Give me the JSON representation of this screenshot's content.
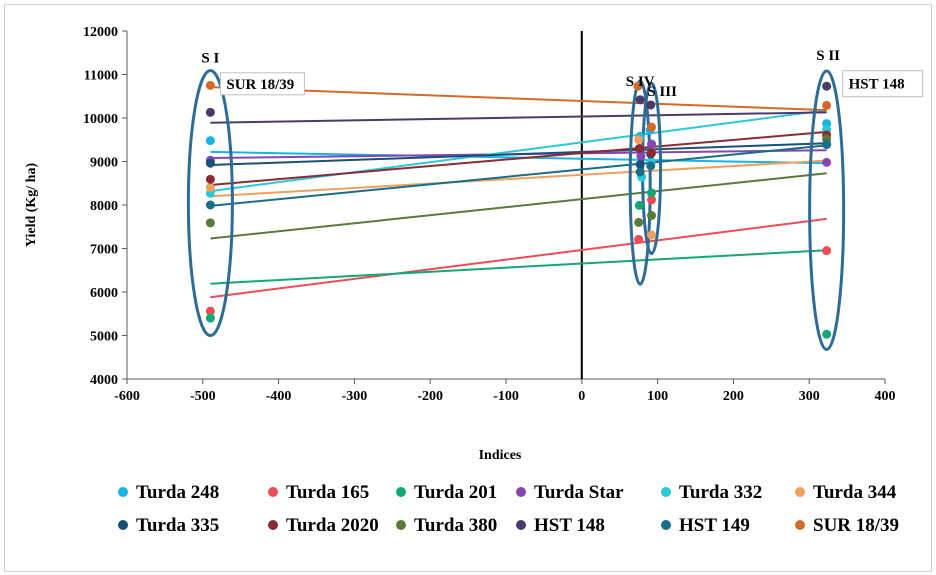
{
  "chart_data": {
    "type": "scatter",
    "xlabel": "Indices",
    "ylabel": "Yield (Kg/ ha)",
    "xlim": [
      -600,
      400
    ],
    "ylim": [
      4000,
      12000
    ],
    "x_ticks": [
      "-600",
      "-500",
      "-400",
      "-300",
      "-200",
      "-100",
      "0",
      "100",
      "200",
      "300",
      "400"
    ],
    "y_ticks": [
      "4000",
      "5000",
      "6000",
      "7000",
      "8000",
      "9000",
      "10000",
      "11000",
      "12000"
    ],
    "grid": false,
    "legend_position": "bottom",
    "group_labels": [
      {
        "text": "S I",
        "x": -490,
        "y": 11280
      },
      {
        "text": "S IV",
        "x": 77,
        "y": 10730
      },
      {
        "text": "S III",
        "x": 106,
        "y": 10510
      },
      {
        "text": "S II",
        "x": 325,
        "y": 11330
      }
    ],
    "callouts": [
      {
        "text": "SUR 18/39",
        "x": -490,
        "y": 10740
      },
      {
        "text": "HST 148",
        "x": 323,
        "y": 10720
      }
    ],
    "series": [
      {
        "name": "Turda 248",
        "color": "#18B4E6",
        "x": [
          -490,
          77,
          90,
          323
        ],
        "y": [
          9480,
          9580,
          9720,
          9870
        ],
        "trend": [
          9220,
          8960
        ]
      },
      {
        "name": "Turda 165",
        "color": "#EE4B55",
        "x": [
          -490,
          75,
          92,
          323
        ],
        "y": [
          5560,
          7210,
          8120,
          6950
        ],
        "trend": [
          5880,
          7680
        ]
      },
      {
        "name": "Turda 201",
        "color": "#12A873",
        "x": [
          -490,
          76,
          92,
          323
        ],
        "y": [
          5400,
          7990,
          8280,
          5030
        ],
        "trend": [
          6190,
          6960
        ]
      },
      {
        "name": "Turda Star",
        "color": "#8446B0",
        "x": [
          -490,
          78,
          92,
          323
        ],
        "y": [
          9030,
          9120,
          9400,
          8980
        ],
        "trend": [
          9080,
          9260
        ]
      },
      {
        "name": "Turda 332",
        "color": "#29C8DA",
        "x": [
          -490,
          79,
          91,
          323
        ],
        "y": [
          8270,
          8640,
          9000,
          9730
        ],
        "trend": [
          8320,
          10180
        ]
      },
      {
        "name": "Turda 344",
        "color": "#F0A05C",
        "x": [
          -490,
          75,
          92,
          323
        ],
        "y": [
          8400,
          9500,
          7310,
          9590
        ],
        "trend": [
          8200,
          9020
        ]
      },
      {
        "name": "Turda 335",
        "color": "#1A4F78",
        "x": [
          -490,
          77,
          91,
          323
        ],
        "y": [
          8960,
          8930,
          9170,
          9390
        ],
        "trend": [
          8920,
          9420
        ]
      },
      {
        "name": "Turda 2020",
        "color": "#8C2A32",
        "x": [
          -490,
          76,
          92,
          323
        ],
        "y": [
          8590,
          9300,
          9200,
          9610
        ],
        "trend": [
          8460,
          9680
        ]
      },
      {
        "name": "Turda 380",
        "color": "#5A7A3A",
        "x": [
          -490,
          75,
          92,
          323
        ],
        "y": [
          7590,
          7600,
          7760,
          9520
        ],
        "trend": [
          7230,
          8730
        ]
      },
      {
        "name": "HST 148",
        "color": "#4A3A6A",
        "x": [
          -490,
          77,
          91,
          323
        ],
        "y": [
          10130,
          10420,
          10300,
          10730
        ],
        "trend": [
          9890,
          10130
        ]
      },
      {
        "name": "HST 149",
        "color": "#176E8A",
        "x": [
          -490,
          77,
          91,
          323
        ],
        "y": [
          8000,
          8760,
          8900,
          9400
        ],
        "trend": [
          7980,
          9370
        ]
      },
      {
        "name": "SUR 18/39",
        "color": "#D46A2A",
        "x": [
          -490,
          74,
          92,
          323
        ],
        "y": [
          10750,
          10730,
          9790,
          10290
        ],
        "trend": [
          10710,
          10180
        ]
      }
    ]
  }
}
